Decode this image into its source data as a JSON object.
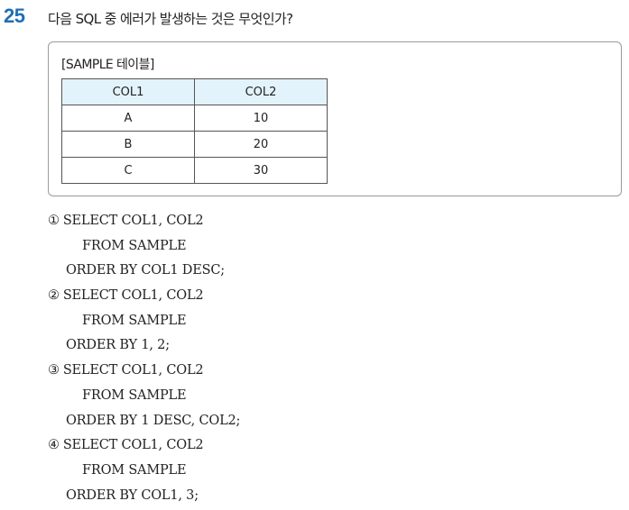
{
  "question": {
    "number": "25",
    "text": "다음 SQL 중 에러가 발생하는 것은 무엇인가?"
  },
  "table": {
    "title": "[SAMPLE 테이블]",
    "headers": [
      "COL1",
      "COL2"
    ],
    "rows": [
      [
        "A",
        "10"
      ],
      [
        "B",
        "20"
      ],
      [
        "C",
        "30"
      ]
    ]
  },
  "options": [
    {
      "marker": "①",
      "select": "SELECT COL1, COL2",
      "from": "FROM SAMPLE",
      "order": "ORDER BY COL1 DESC;"
    },
    {
      "marker": "②",
      "select": "SELECT COL1, COL2",
      "from": "FROM SAMPLE",
      "order": "ORDER BY 1, 2;"
    },
    {
      "marker": "③",
      "select": "SELECT COL1, COL2",
      "from": "FROM SAMPLE",
      "order": "ORDER BY 1 DESC, COL2;"
    },
    {
      "marker": "④",
      "select": "SELECT COL1, COL2",
      "from": "FROM SAMPLE",
      "order": "ORDER BY COL1, 3;"
    }
  ]
}
